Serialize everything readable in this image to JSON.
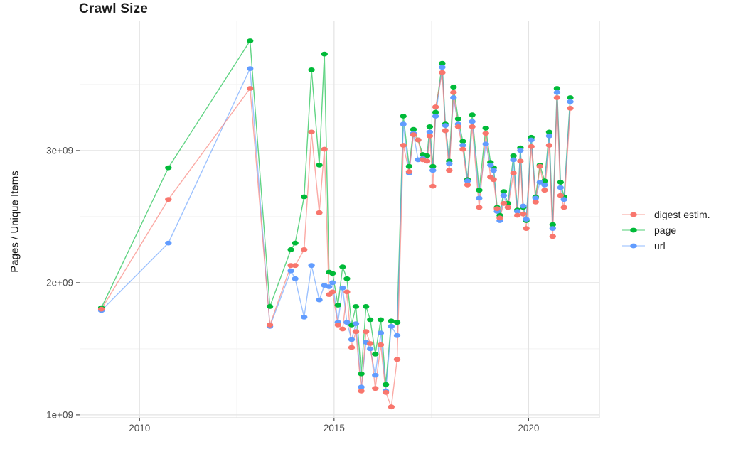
{
  "chart_data": {
    "type": "line",
    "title": "Crawl Size",
    "ylabel": "Pages / Unique Items",
    "xlabel": "",
    "y_unit": "pages/items x 1e9",
    "x_unit": "year (decimal, one point per crawl)",
    "x": [
      2009.02,
      2010.74,
      2012.84,
      2013.35,
      2013.89,
      2014.0,
      2014.23,
      2014.42,
      2014.62,
      2014.75,
      2014.87,
      2014.96,
      2015.1,
      2015.22,
      2015.33,
      2015.45,
      2015.56,
      2015.7,
      2015.82,
      2015.93,
      2016.06,
      2016.2,
      2016.33,
      2016.47,
      2016.62,
      2016.78,
      2016.93,
      2017.04,
      2017.16,
      2017.28,
      2017.39,
      2017.46,
      2017.54,
      2017.61,
      2017.78,
      2017.86,
      2017.96,
      2018.07,
      2018.19,
      2018.31,
      2018.43,
      2018.55,
      2018.73,
      2018.9,
      2019.02,
      2019.1,
      2019.19,
      2019.26,
      2019.36,
      2019.47,
      2019.61,
      2019.71,
      2019.79,
      2019.86,
      2019.94,
      2020.07,
      2020.18,
      2020.29,
      2020.41,
      2020.53,
      2020.62,
      2020.73,
      2020.82,
      2020.91,
      2021.07
    ],
    "series": [
      {
        "name": "digest estim.",
        "color": "#F8766D",
        "values_billions": [
          1.8,
          2.63,
          3.47,
          1.68,
          2.13,
          2.13,
          2.25,
          3.14,
          2.53,
          3.01,
          1.91,
          1.93,
          1.68,
          1.65,
          1.93,
          1.51,
          1.63,
          1.18,
          1.63,
          1.54,
          1.2,
          1.53,
          1.17,
          1.06,
          1.42,
          3.04,
          2.84,
          3.12,
          3.08,
          2.93,
          2.92,
          3.11,
          2.73,
          3.33,
          3.59,
          3.15,
          2.85,
          3.44,
          3.18,
          3.01,
          2.74,
          3.18,
          2.57,
          3.13,
          2.8,
          2.78,
          2.56,
          2.49,
          2.6,
          2.57,
          2.83,
          2.51,
          2.92,
          2.52,
          2.41,
          3.03,
          2.61,
          2.88,
          2.7,
          3.04,
          2.35,
          3.4,
          2.66,
          2.57,
          3.32
        ]
      },
      {
        "name": "page",
        "color": "#00BA38",
        "values_billions": [
          1.81,
          2.87,
          3.83,
          1.82,
          2.25,
          2.3,
          2.65,
          3.61,
          2.89,
          3.73,
          2.08,
          2.07,
          1.83,
          2.12,
          2.03,
          1.68,
          1.82,
          1.31,
          1.82,
          1.72,
          1.46,
          1.72,
          1.23,
          1.71,
          1.7,
          3.26,
          2.88,
          3.16,
          3.08,
          2.97,
          2.96,
          3.18,
          2.88,
          3.29,
          3.66,
          3.2,
          2.92,
          3.48,
          3.24,
          3.07,
          2.78,
          3.27,
          2.7,
          3.17,
          2.91,
          2.87,
          2.57,
          2.51,
          2.69,
          2.6,
          2.96,
          2.55,
          3.02,
          2.57,
          2.47,
          3.1,
          2.65,
          2.89,
          2.77,
          3.14,
          2.44,
          3.47,
          2.76,
          2.65,
          3.4
        ]
      },
      {
        "name": "url",
        "color": "#619CFF",
        "values_billions": [
          1.79,
          2.3,
          3.62,
          1.67,
          2.09,
          2.03,
          1.74,
          2.13,
          1.87,
          1.98,
          1.97,
          2.0,
          1.7,
          1.96,
          1.7,
          1.57,
          1.69,
          1.21,
          1.55,
          1.5,
          1.3,
          1.62,
          1.18,
          1.67,
          1.6,
          3.2,
          2.83,
          3.13,
          2.93,
          2.94,
          2.92,
          3.14,
          2.85,
          3.26,
          3.63,
          3.19,
          2.9,
          3.4,
          3.2,
          3.04,
          2.77,
          3.22,
          2.64,
          3.05,
          2.89,
          2.85,
          2.54,
          2.47,
          2.66,
          2.57,
          2.93,
          2.54,
          3.0,
          2.58,
          2.48,
          3.08,
          2.64,
          2.76,
          2.74,
          3.11,
          2.41,
          3.44,
          2.72,
          2.63,
          3.37
        ]
      }
    ],
    "axes": {
      "xlim": [
        2008.46,
        2021.82
      ],
      "ylim_billions": [
        0.978,
        3.978
      ],
      "xticks": {
        "values": [
          2010,
          2015,
          2020
        ],
        "labels": [
          "2010",
          "2015",
          "2020"
        ],
        "minor": [
          2012.5,
          2017.5
        ]
      },
      "yticks": {
        "values": [
          1,
          2,
          3
        ],
        "labels": [
          "1e+09",
          "2e+09",
          "3e+09"
        ],
        "minor": [
          1.5,
          2.5,
          3.5
        ]
      }
    },
    "grid": true,
    "legend_position": "right",
    "draw_order_series_indices": [
      1,
      2,
      0
    ],
    "colors": {
      "background": "#ffffff",
      "grid_major": "#e3e3e3",
      "grid_minor": "#f2f2f2",
      "panel_edge": "#e0e0e0",
      "tick": "#333333",
      "tick_label": "#4d4d4d",
      "title": "#1d1d1d"
    }
  }
}
